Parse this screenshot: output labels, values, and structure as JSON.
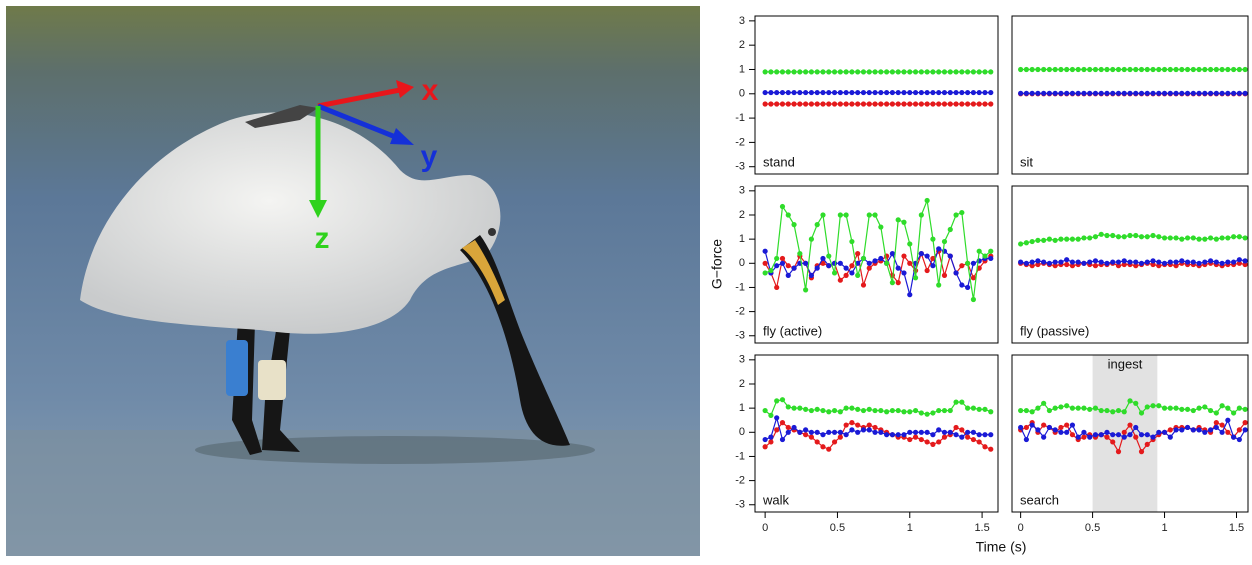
{
  "photo": {
    "axis_labels": [
      {
        "text": "x",
        "color": "#e8161b"
      },
      {
        "text": "y",
        "color": "#1530d8"
      },
      {
        "text": "z",
        "color": "#2fd21c"
      }
    ]
  },
  "figure": {
    "y_label": "G−force",
    "x_label": "Time (s)"
  },
  "chart_data": [
    {
      "type": "line",
      "title": "stand",
      "markers": true,
      "x": [
        0,
        0.04,
        0.08,
        0.12,
        0.16,
        0.2,
        0.24,
        0.28,
        0.32,
        0.36,
        0.4,
        0.44,
        0.48,
        0.52,
        0.56,
        0.6,
        0.64,
        0.68,
        0.72,
        0.76,
        0.8,
        0.84,
        0.88,
        0.92,
        0.96,
        1,
        1.04,
        1.08,
        1.12,
        1.16,
        1.2,
        1.24,
        1.28,
        1.32,
        1.36,
        1.4,
        1.44,
        1.48,
        1.52,
        1.56
      ],
      "xlim": [
        -0.07,
        1.61
      ],
      "ylim": [
        -3.3,
        3.2
      ],
      "yticks": [
        -3,
        -2,
        -1,
        0,
        1,
        2,
        3
      ],
      "series": [
        {
          "color": "#e41a1c",
          "values": [
            -0.42,
            -0.42,
            -0.42,
            -0.42,
            -0.42,
            -0.42,
            -0.42,
            -0.42,
            -0.42,
            -0.42,
            -0.42,
            -0.42,
            -0.42,
            -0.42,
            -0.42,
            -0.42,
            -0.42,
            -0.42,
            -0.42,
            -0.42,
            -0.42,
            -0.42,
            -0.42,
            -0.42,
            -0.42,
            -0.42,
            -0.42,
            -0.42,
            -0.42,
            -0.42,
            -0.42,
            -0.42,
            -0.42,
            -0.42,
            -0.42,
            -0.42,
            -0.42,
            -0.42,
            -0.42,
            -0.42
          ]
        },
        {
          "color": "#1a1ad6",
          "values": [
            0.05,
            0.05,
            0.05,
            0.05,
            0.05,
            0.05,
            0.05,
            0.05,
            0.05,
            0.05,
            0.05,
            0.05,
            0.05,
            0.05,
            0.05,
            0.05,
            0.05,
            0.05,
            0.05,
            0.05,
            0.05,
            0.05,
            0.05,
            0.05,
            0.05,
            0.05,
            0.05,
            0.05,
            0.05,
            0.05,
            0.05,
            0.05,
            0.05,
            0.05,
            0.05,
            0.05,
            0.05,
            0.05,
            0.05,
            0.05
          ]
        },
        {
          "color": "#2fdc2a",
          "values": [
            0.9,
            0.9,
            0.9,
            0.9,
            0.9,
            0.9,
            0.9,
            0.9,
            0.9,
            0.9,
            0.9,
            0.9,
            0.9,
            0.9,
            0.9,
            0.9,
            0.9,
            0.9,
            0.9,
            0.9,
            0.9,
            0.9,
            0.9,
            0.9,
            0.9,
            0.9,
            0.9,
            0.9,
            0.9,
            0.9,
            0.9,
            0.9,
            0.9,
            0.9,
            0.9,
            0.9,
            0.9,
            0.9,
            0.9,
            0.9
          ]
        }
      ]
    },
    {
      "type": "line",
      "title": "sit",
      "markers": true,
      "x": [
        0,
        0.04,
        0.08,
        0.12,
        0.16,
        0.2,
        0.24,
        0.28,
        0.32,
        0.36,
        0.4,
        0.44,
        0.48,
        0.52,
        0.56,
        0.6,
        0.64,
        0.68,
        0.72,
        0.76,
        0.8,
        0.84,
        0.88,
        0.92,
        0.96,
        1,
        1.04,
        1.08,
        1.12,
        1.16,
        1.2,
        1.24,
        1.28,
        1.32,
        1.36,
        1.4,
        1.44,
        1.48,
        1.52,
        1.56
      ],
      "xlim": [
        -0.06,
        1.58
      ],
      "ylim": [
        -3.3,
        3.2
      ],
      "series": [
        {
          "color": "#e41a1c",
          "values": [
            0,
            0,
            0,
            0,
            0,
            0,
            0,
            0,
            0,
            0,
            0,
            0,
            0,
            0,
            0,
            0,
            0,
            0,
            0,
            0,
            0,
            0,
            0,
            0,
            0,
            0,
            0,
            0,
            0,
            0,
            0,
            0,
            0,
            0,
            0,
            0,
            0,
            0,
            0,
            0
          ]
        },
        {
          "color": "#1a1ad6",
          "values": [
            0.02,
            0.02,
            0.02,
            0.02,
            0.02,
            0.02,
            0.02,
            0.02,
            0.02,
            0.02,
            0.02,
            0.02,
            0.02,
            0.02,
            0.02,
            0.02,
            0.02,
            0.02,
            0.02,
            0.02,
            0.02,
            0.02,
            0.02,
            0.02,
            0.02,
            0.02,
            0.02,
            0.02,
            0.02,
            0.02,
            0.02,
            0.02,
            0.02,
            0.02,
            0.02,
            0.02,
            0.02,
            0.02,
            0.02,
            0.02
          ]
        },
        {
          "color": "#2fdc2a",
          "values": [
            1,
            1,
            1,
            1,
            1,
            1,
            1,
            1,
            1,
            1,
            1,
            1,
            1,
            1,
            1,
            1,
            1,
            1,
            1,
            1,
            1,
            1,
            1,
            1,
            1,
            1,
            1,
            1,
            1,
            1,
            1,
            1,
            1,
            1,
            1,
            1,
            1,
            1,
            1,
            1
          ]
        }
      ]
    },
    {
      "type": "line",
      "title": "fly (active)",
      "markers": true,
      "x": [
        0,
        0.04,
        0.08,
        0.12,
        0.16,
        0.2,
        0.24,
        0.28,
        0.32,
        0.36,
        0.4,
        0.44,
        0.48,
        0.52,
        0.56,
        0.6,
        0.64,
        0.68,
        0.72,
        0.76,
        0.8,
        0.84,
        0.88,
        0.92,
        0.96,
        1,
        1.04,
        1.08,
        1.12,
        1.16,
        1.2,
        1.24,
        1.28,
        1.32,
        1.36,
        1.4,
        1.44,
        1.48,
        1.52,
        1.56
      ],
      "xlim": [
        -0.07,
        1.61
      ],
      "ylim": [
        -3.3,
        3.2
      ],
      "yticks": [
        -3,
        -2,
        -1,
        0,
        1,
        2,
        3
      ],
      "series": [
        {
          "color": "#e41a1c",
          "values": [
            0.0,
            -0.4,
            -1.0,
            0.2,
            -0.1,
            -0.2,
            0.3,
            0.0,
            -0.6,
            -0.1,
            0.0,
            -0.1,
            0.0,
            -0.7,
            -0.5,
            -0.1,
            0.4,
            -0.9,
            -0.2,
            0.0,
            0.1,
            0.3,
            -0.5,
            -0.8,
            0.3,
            0.0,
            -0.3,
            0.4,
            -0.3,
            0.2,
            0.5,
            -0.5,
            0.3,
            -0.4,
            -0.1,
            0.0,
            -0.6,
            -0.2,
            0.1,
            0.3
          ]
        },
        {
          "color": "#1a1ad6",
          "values": [
            0.5,
            -0.4,
            -0.1,
            0.0,
            -0.5,
            -0.2,
            0.0,
            0.0,
            -0.5,
            -0.2,
            0.2,
            -0.1,
            0.0,
            0.0,
            -0.2,
            -0.4,
            0.0,
            0.2,
            0.0,
            0.1,
            0.2,
            0.0,
            0.4,
            -0.2,
            -0.4,
            -1.3,
            0.0,
            0.4,
            0.3,
            -0.1,
            0.6,
            0.5,
            0.3,
            -0.4,
            -0.9,
            -1.0,
            0.0,
            0.1,
            0.2,
            0.2
          ]
        },
        {
          "color": "#2fdc2a",
          "values": [
            -0.4,
            -0.3,
            0.2,
            2.35,
            2.0,
            1.6,
            0.4,
            -1.1,
            1.0,
            1.6,
            2.0,
            0.3,
            -0.4,
            2.0,
            2.0,
            0.9,
            -0.5,
            0.2,
            2.0,
            2.0,
            1.5,
            0.0,
            -0.8,
            1.8,
            1.7,
            0.8,
            -0.6,
            2.0,
            2.6,
            1.0,
            -0.9,
            0.9,
            1.4,
            2.0,
            2.1,
            0.0,
            -1.5,
            0.5,
            0.3,
            0.5
          ]
        }
      ]
    },
    {
      "type": "line",
      "title": "fly (passive)",
      "markers": true,
      "x": [
        0,
        0.04,
        0.08,
        0.12,
        0.16,
        0.2,
        0.24,
        0.28,
        0.32,
        0.36,
        0.4,
        0.44,
        0.48,
        0.52,
        0.56,
        0.6,
        0.64,
        0.68,
        0.72,
        0.76,
        0.8,
        0.84,
        0.88,
        0.92,
        0.96,
        1,
        1.04,
        1.08,
        1.12,
        1.16,
        1.2,
        1.24,
        1.28,
        1.32,
        1.36,
        1.4,
        1.44,
        1.48,
        1.52,
        1.56
      ],
      "xlim": [
        -0.06,
        1.58
      ],
      "ylim": [
        -3.3,
        3.2
      ],
      "series": [
        {
          "color": "#e41a1c",
          "values": [
            0.0,
            -0.05,
            -0.1,
            -0.05,
            0.0,
            -0.05,
            -0.1,
            -0.05,
            -0.05,
            -0.1,
            -0.05,
            0.0,
            -0.05,
            -0.1,
            -0.05,
            -0.05,
            0.0,
            -0.1,
            -0.05,
            -0.05,
            -0.1,
            -0.05,
            0.0,
            -0.05,
            -0.1,
            -0.05,
            -0.05,
            -0.1,
            0.0,
            -0.05,
            -0.05,
            -0.1,
            -0.05,
            0.0,
            -0.05,
            -0.1,
            -0.05,
            -0.05,
            0.0,
            -0.05
          ]
        },
        {
          "color": "#1a1ad6",
          "values": [
            0.05,
            0.0,
            0.05,
            0.1,
            0.05,
            0.0,
            0.05,
            0.05,
            0.15,
            0.05,
            0.05,
            0.0,
            0.05,
            0.1,
            0.05,
            0.0,
            0.05,
            0.05,
            0.1,
            0.05,
            0.05,
            0.0,
            0.05,
            0.1,
            0.05,
            0.0,
            0.05,
            0.05,
            0.1,
            0.05,
            0.05,
            0.0,
            0.05,
            0.1,
            0.05,
            0.0,
            0.05,
            0.05,
            0.15,
            0.1
          ]
        },
        {
          "color": "#2fdc2a",
          "values": [
            0.8,
            0.85,
            0.9,
            0.95,
            0.95,
            1.0,
            0.95,
            1.0,
            1.0,
            1.0,
            1.0,
            1.05,
            1.05,
            1.1,
            1.2,
            1.15,
            1.15,
            1.1,
            1.1,
            1.15,
            1.15,
            1.1,
            1.1,
            1.15,
            1.1,
            1.05,
            1.05,
            1.05,
            1.0,
            1.05,
            1.05,
            1.0,
            1.0,
            1.05,
            1.0,
            1.05,
            1.05,
            1.1,
            1.1,
            1.05
          ]
        }
      ]
    },
    {
      "type": "line",
      "title": "walk",
      "markers": true,
      "x": [
        0,
        0.04,
        0.08,
        0.12,
        0.16,
        0.2,
        0.24,
        0.28,
        0.32,
        0.36,
        0.4,
        0.44,
        0.48,
        0.52,
        0.56,
        0.6,
        0.64,
        0.68,
        0.72,
        0.76,
        0.8,
        0.84,
        0.88,
        0.92,
        0.96,
        1,
        1.04,
        1.08,
        1.12,
        1.16,
        1.2,
        1.24,
        1.28,
        1.32,
        1.36,
        1.4,
        1.44,
        1.48,
        1.52,
        1.56
      ],
      "xlim": [
        -0.07,
        1.61
      ],
      "ylim": [
        -3.3,
        3.2
      ],
      "yticks": [
        -3,
        -2,
        -1,
        0,
        1,
        2,
        3
      ],
      "xticks": [
        0,
        0.5,
        1,
        1.5
      ],
      "series": [
        {
          "color": "#e41a1c",
          "values": [
            -0.6,
            -0.4,
            0.1,
            0.4,
            0.2,
            0.1,
            0.0,
            -0.1,
            -0.2,
            -0.4,
            -0.6,
            -0.7,
            -0.4,
            -0.2,
            0.3,
            0.4,
            0.3,
            0.2,
            0.3,
            0.2,
            0.1,
            0.0,
            -0.1,
            -0.2,
            -0.2,
            -0.3,
            -0.2,
            -0.3,
            -0.4,
            -0.5,
            -0.4,
            -0.2,
            -0.1,
            0.2,
            0.1,
            -0.2,
            -0.3,
            -0.4,
            -0.6,
            -0.7
          ]
        },
        {
          "color": "#1a1ad6",
          "values": [
            -0.3,
            -0.2,
            0.6,
            -0.3,
            0.0,
            0.2,
            0.0,
            0.1,
            0.0,
            0.0,
            -0.1,
            0.0,
            0.0,
            0.0,
            -0.1,
            0.1,
            0.0,
            0.1,
            0.1,
            0.0,
            0.0,
            -0.1,
            -0.1,
            -0.1,
            -0.1,
            0.0,
            0.0,
            0.0,
            0.0,
            -0.1,
            0.1,
            0.0,
            0.0,
            -0.1,
            -0.2,
            0.0,
            0.0,
            -0.1,
            -0.1,
            -0.1
          ]
        },
        {
          "color": "#2fdc2a",
          "values": [
            0.9,
            0.7,
            1.3,
            1.35,
            1.05,
            1.0,
            1.0,
            0.95,
            0.9,
            0.95,
            0.9,
            0.85,
            0.9,
            0.85,
            1.0,
            1.0,
            0.95,
            0.9,
            0.95,
            0.9,
            0.9,
            0.85,
            0.9,
            0.9,
            0.85,
            0.85,
            0.9,
            0.8,
            0.75,
            0.8,
            0.9,
            0.9,
            0.9,
            1.25,
            1.25,
            1.0,
            1.0,
            0.95,
            0.95,
            0.85
          ]
        }
      ]
    },
    {
      "type": "line",
      "title": "search",
      "markers": true,
      "x": [
        0,
        0.04,
        0.08,
        0.12,
        0.16,
        0.2,
        0.24,
        0.28,
        0.32,
        0.36,
        0.4,
        0.44,
        0.48,
        0.52,
        0.56,
        0.6,
        0.64,
        0.68,
        0.72,
        0.76,
        0.8,
        0.84,
        0.88,
        0.92,
        0.96,
        1,
        1.04,
        1.08,
        1.12,
        1.16,
        1.2,
        1.24,
        1.28,
        1.32,
        1.36,
        1.4,
        1.44,
        1.48,
        1.52,
        1.56
      ],
      "xlim": [
        -0.06,
        1.58
      ],
      "ylim": [
        -3.3,
        3.2
      ],
      "xticks": [
        0,
        0.5,
        1,
        1.5
      ],
      "annotations": [
        {
          "text": "ingest",
          "x0": 0.5,
          "x1": 0.95
        }
      ],
      "series": [
        {
          "color": "#e41a1c",
          "values": [
            0.1,
            0.2,
            0.4,
            0.0,
            0.3,
            0.2,
            0.0,
            0.2,
            0.3,
            -0.1,
            -0.3,
            -0.2,
            -0.1,
            -0.2,
            -0.1,
            -0.2,
            -0.4,
            -0.8,
            0.0,
            0.3,
            -0.2,
            -0.8,
            -0.5,
            -0.3,
            -0.1,
            0.0,
            0.1,
            0.2,
            0.2,
            0.2,
            0.1,
            0.2,
            0.1,
            0.0,
            0.4,
            0.3,
            0.0,
            -0.2,
            0.1,
            0.4
          ]
        },
        {
          "color": "#1a1ad6",
          "values": [
            0.2,
            -0.3,
            0.3,
            0.1,
            -0.2,
            0.2,
            0.1,
            0.0,
            0.0,
            0.3,
            -0.2,
            0.0,
            -0.2,
            -0.1,
            -0.1,
            0.0,
            -0.1,
            -0.1,
            -0.2,
            -0.1,
            0.2,
            -0.1,
            -0.1,
            -0.2,
            0.0,
            0.0,
            -0.2,
            0.1,
            0.1,
            0.2,
            0.1,
            0.1,
            0.0,
            0.1,
            0.2,
            0.0,
            0.5,
            -0.2,
            -0.3,
            0.1
          ]
        },
        {
          "color": "#2fdc2a",
          "values": [
            0.9,
            0.9,
            0.85,
            1.0,
            1.2,
            0.9,
            1.0,
            1.05,
            1.1,
            1.0,
            1.0,
            1.0,
            0.95,
            1.0,
            0.9,
            0.9,
            0.85,
            0.9,
            0.85,
            1.3,
            1.2,
            0.8,
            1.05,
            1.1,
            1.1,
            1.0,
            1.0,
            1.0,
            0.95,
            0.95,
            0.9,
            1.0,
            1.05,
            0.9,
            0.8,
            1.1,
            1.0,
            0.8,
            1.0,
            0.95
          ]
        }
      ]
    }
  ]
}
